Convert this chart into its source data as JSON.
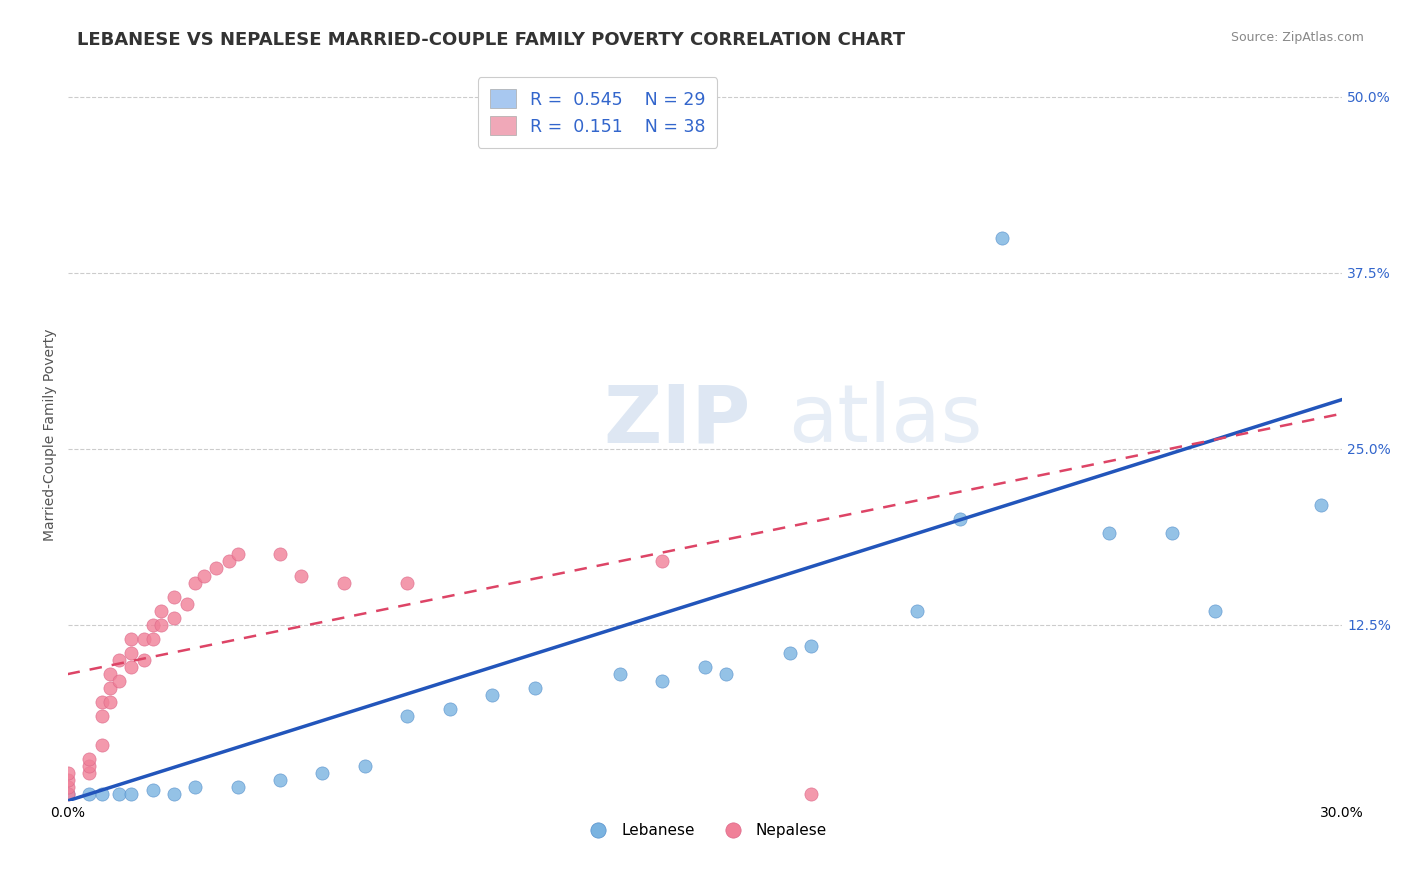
{
  "title": "LEBANESE VS NEPALESE MARRIED-COUPLE FAMILY POVERTY CORRELATION CHART",
  "source": "Source: ZipAtlas.com",
  "ylabel_label": "Married-Couple Family Poverty",
  "xlim": [
    0.0,
    0.3
  ],
  "ylim": [
    0.0,
    0.52
  ],
  "watermark_zip": "ZIP",
  "watermark_atlas": "atlas",
  "legend_items": [
    {
      "label": "Lebanese",
      "R": "0.545",
      "N": "29",
      "color": "#a8c8f0"
    },
    {
      "label": "Nepalese",
      "R": "0.151",
      "N": "38",
      "color": "#f0a8b8"
    }
  ],
  "lebanese_scatter": [
    [
      0.0,
      0.005
    ],
    [
      0.005,
      0.005
    ],
    [
      0.008,
      0.005
    ],
    [
      0.012,
      0.005
    ],
    [
      0.015,
      0.005
    ],
    [
      0.02,
      0.008
    ],
    [
      0.025,
      0.005
    ],
    [
      0.03,
      0.01
    ],
    [
      0.04,
      0.01
    ],
    [
      0.05,
      0.015
    ],
    [
      0.06,
      0.02
    ],
    [
      0.07,
      0.025
    ],
    [
      0.08,
      0.06
    ],
    [
      0.09,
      0.065
    ],
    [
      0.1,
      0.075
    ],
    [
      0.11,
      0.08
    ],
    [
      0.13,
      0.09
    ],
    [
      0.14,
      0.085
    ],
    [
      0.15,
      0.095
    ],
    [
      0.155,
      0.09
    ],
    [
      0.17,
      0.105
    ],
    [
      0.175,
      0.11
    ],
    [
      0.2,
      0.135
    ],
    [
      0.21,
      0.2
    ],
    [
      0.22,
      0.4
    ],
    [
      0.245,
      0.19
    ],
    [
      0.26,
      0.19
    ],
    [
      0.27,
      0.135
    ],
    [
      0.295,
      0.21
    ]
  ],
  "nepalese_scatter": [
    [
      0.0,
      0.005
    ],
    [
      0.0,
      0.01
    ],
    [
      0.0,
      0.015
    ],
    [
      0.0,
      0.02
    ],
    [
      0.005,
      0.02
    ],
    [
      0.005,
      0.025
    ],
    [
      0.005,
      0.03
    ],
    [
      0.008,
      0.04
    ],
    [
      0.008,
      0.06
    ],
    [
      0.008,
      0.07
    ],
    [
      0.01,
      0.07
    ],
    [
      0.01,
      0.08
    ],
    [
      0.01,
      0.09
    ],
    [
      0.012,
      0.085
    ],
    [
      0.012,
      0.1
    ],
    [
      0.015,
      0.095
    ],
    [
      0.015,
      0.105
    ],
    [
      0.015,
      0.115
    ],
    [
      0.018,
      0.1
    ],
    [
      0.018,
      0.115
    ],
    [
      0.02,
      0.115
    ],
    [
      0.02,
      0.125
    ],
    [
      0.022,
      0.125
    ],
    [
      0.022,
      0.135
    ],
    [
      0.025,
      0.13
    ],
    [
      0.025,
      0.145
    ],
    [
      0.028,
      0.14
    ],
    [
      0.03,
      0.155
    ],
    [
      0.032,
      0.16
    ],
    [
      0.035,
      0.165
    ],
    [
      0.038,
      0.17
    ],
    [
      0.04,
      0.175
    ],
    [
      0.05,
      0.175
    ],
    [
      0.055,
      0.16
    ],
    [
      0.065,
      0.155
    ],
    [
      0.08,
      0.155
    ],
    [
      0.14,
      0.17
    ],
    [
      0.175,
      0.005
    ]
  ],
  "lebanese_color": "#7ab3e0",
  "nepalese_color": "#f08098",
  "lebanese_line_color": "#2255bb",
  "nepalese_line_color": "#dd4466",
  "background_color": "#ffffff",
  "grid_color": "#cccccc",
  "title_fontsize": 13,
  "axis_label_fontsize": 10,
  "tick_fontsize": 10
}
